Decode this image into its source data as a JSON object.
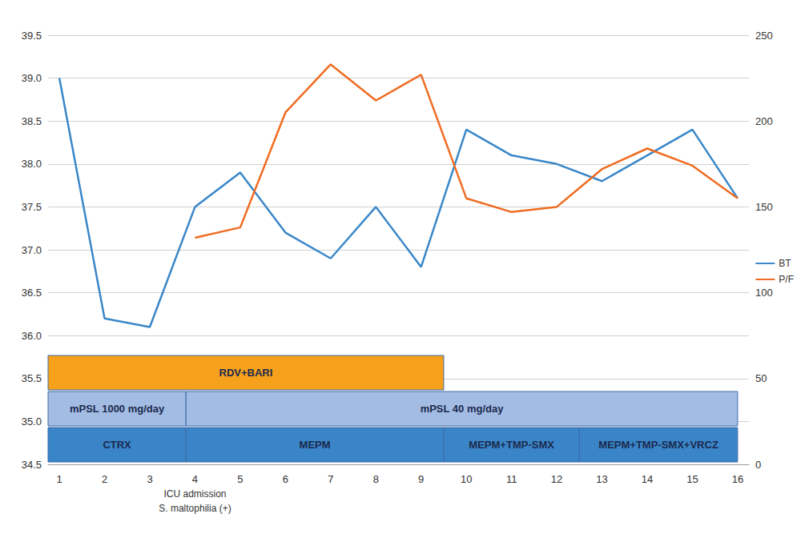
{
  "chart_data": {
    "type": "line",
    "x": [
      1,
      2,
      3,
      4,
      5,
      6,
      7,
      8,
      9,
      10,
      11,
      12,
      13,
      14,
      15,
      16
    ],
    "xlim": [
      0.75,
      16.25
    ],
    "xticks": [
      1,
      2,
      3,
      4,
      5,
      6,
      7,
      8,
      9,
      10,
      11,
      12,
      13,
      14,
      15,
      16
    ],
    "ylim": [
      34.5,
      39.5
    ],
    "yticks": [
      34.5,
      {
        "value": 35,
        "label": "35.0"
      },
      35.5,
      {
        "value": 36,
        "label": "36.0"
      },
      36.5,
      {
        "value": 37,
        "label": "37.0"
      },
      37.5,
      {
        "value": 38,
        "label": "38.0"
      },
      38.5,
      {
        "value": 39,
        "label": "39.0"
      },
      39.5
    ],
    "y2lim": [
      0,
      250
    ],
    "y2ticks": [
      0,
      50,
      100,
      150,
      200,
      250
    ],
    "grid": true,
    "legend": "right",
    "series": [
      {
        "name": "BT",
        "color": "#3a87c8",
        "values": [
          39.0,
          36.2,
          36.1,
          37.5,
          37.9,
          37.2,
          36.9,
          37.5,
          36.8,
          38.4,
          38.1,
          38.0,
          37.8,
          38.1,
          38.4,
          37.6
        ]
      },
      {
        "name": "P/F",
        "color": "#ef6c22",
        "axis": "y2",
        "values": [
          null,
          null,
          null,
          132,
          138,
          205,
          233,
          212,
          227,
          155,
          147,
          150,
          172,
          184,
          174,
          155
        ]
      }
    ],
    "annotations": [
      {
        "x": 4,
        "text": [
          "ICU admission",
          "S. maltophilia (+)"
        ]
      }
    ],
    "treatments": [
      [
        {
          "label": "RDV+BARI",
          "start": 0.75,
          "end": 9.5,
          "color": "#f5a11c"
        }
      ],
      [
        {
          "label": "mPSL 1000 mg/day",
          "start": 0.75,
          "end": 3.8,
          "color": "#a3bce3"
        },
        {
          "label": "mPSL 40 mg/day",
          "start": 3.8,
          "end": 16,
          "color": "#a3bce3"
        }
      ],
      [
        {
          "label": "CTRX",
          "start": 0.75,
          "end": 3.8,
          "color": "#3a85c7"
        },
        {
          "label": "MEPM",
          "start": 3.8,
          "end": 9.5,
          "color": "#3a85c7"
        },
        {
          "label": "MEPM+TMP-SMX",
          "start": 9.5,
          "end": 12.5,
          "color": "#3a85c7"
        },
        {
          "label": "MEPM+TMP-SMX+VRCZ",
          "start": 12.5,
          "end": 16,
          "color": "#3a85c7"
        }
      ]
    ]
  }
}
